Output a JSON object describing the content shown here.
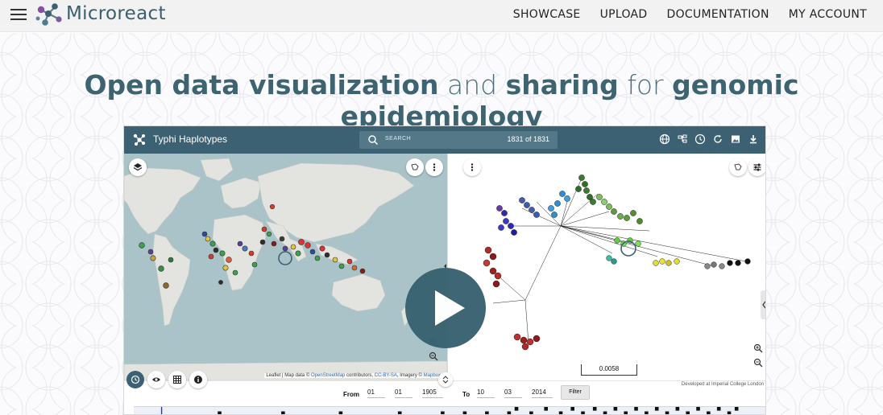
{
  "header": {
    "brand": "Microreact",
    "nav": [
      "SHOWCASE",
      "UPLOAD",
      "DOCUMENTATION",
      "MY ACCOUNT"
    ]
  },
  "hero": {
    "title_parts": [
      {
        "text": "Open data visualization",
        "weight": "bold"
      },
      {
        "text": " and ",
        "weight": "light"
      },
      {
        "text": "sharing",
        "weight": "bold"
      },
      {
        "text": " for ",
        "weight": "light"
      },
      {
        "text": "genomic epidemiology",
        "weight": "bold"
      }
    ]
  },
  "app": {
    "title": "Typhi Haplotypes",
    "search_placeholder": "SEARCH",
    "count": "1831 of 1831",
    "map_attribution_pre": "Leaflet | Map data © ",
    "map_attribution_osm": "OpenStreetMap",
    "map_attribution_mid": " contributors, ",
    "map_attribution_cc": "CC-BY-SA",
    "map_attribution_post": ", Imagery © ",
    "map_attribution_mapbox": "Mapbox",
    "scale": "0.0058",
    "dev_credit": "Developed at Imperial College London",
    "filter": {
      "from_label": "From",
      "from_day": "01",
      "from_month": "01",
      "from_year": "1905",
      "to_label": "To",
      "to_day": "10",
      "to_month": "03",
      "to_year": "2014",
      "button": "Filter"
    }
  },
  "colors": {
    "brand_teal": "#3b6172",
    "title_teal": "#3d6470",
    "play_button": "#386270"
  }
}
